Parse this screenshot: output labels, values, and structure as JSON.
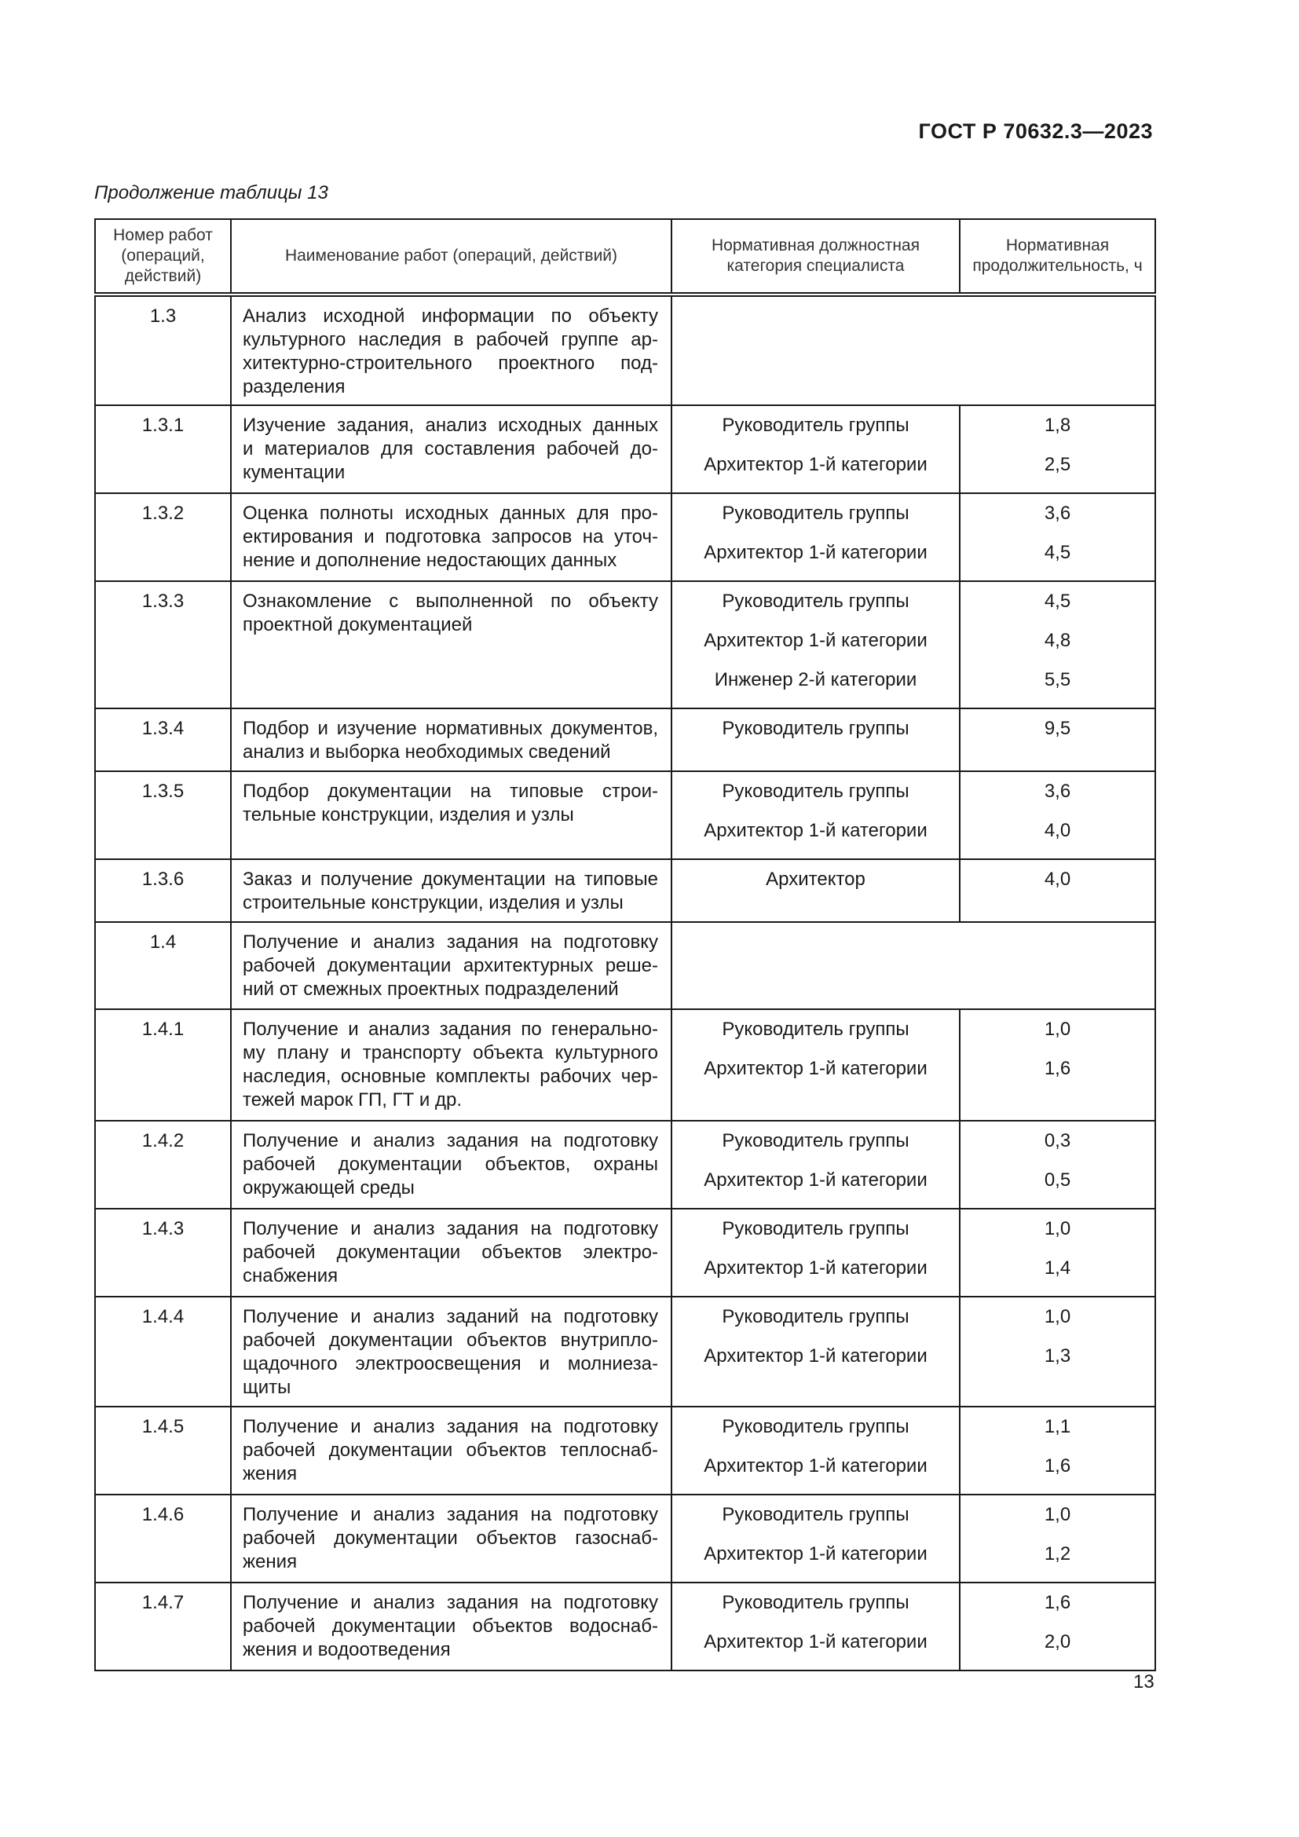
{
  "header": {
    "standard": "ГОСТ Р 70632.3—2023",
    "continuation": "Продолжение таблицы 13"
  },
  "table": {
    "columns": [
      "Номер работ (операций, действий)",
      "Наименование работ (операций, действий)",
      "Нормативная должностная категория специалиста",
      "Нормативная продолжительность, ч"
    ],
    "rows": [
      {
        "num": "1.3",
        "desc": [
          "Анализ исходной информации по объекту",
          "культурного наследия в рабочей группе ар-",
          "хитектурно-строительного проектного под-",
          "разделения"
        ],
        "staff": [],
        "hours": [],
        "merged": true
      },
      {
        "num": "1.3.1",
        "desc": [
          "Изучение задания, анализ исходных данных",
          "и материалов для составления рабочей до-",
          "кументации"
        ],
        "staff": [
          "Руководитель группы",
          "Архитектор 1-й категории"
        ],
        "hours": [
          "1,8",
          "2,5"
        ]
      },
      {
        "num": "1.3.2",
        "desc": [
          "Оценка полноты исходных данных для про-",
          "ектирования и подготовка запросов на уточ-",
          "нение и дополнение недостающих данных"
        ],
        "staff": [
          "Руководитель группы",
          "Архитектор 1-й категории"
        ],
        "hours": [
          "3,6",
          "4,5"
        ]
      },
      {
        "num": "1.3.3",
        "desc": [
          "Ознакомление с выполненной по объекту",
          "проектной документацией"
        ],
        "staff": [
          "Руководитель группы",
          "Архитектор 1-й категории",
          "Инженер 2-й категории"
        ],
        "hours": [
          "4,5",
          "4,8",
          "5,5"
        ]
      },
      {
        "num": "1.3.4",
        "desc": [
          "Подбор и изучение нормативных документов,",
          "анализ и выборка необходимых сведений"
        ],
        "staff": [
          "Руководитель группы"
        ],
        "hours": [
          "9,5"
        ]
      },
      {
        "num": "1.3.5",
        "desc": [
          "Подбор документации на типовые строи-",
          "тельные конструкции, изделия и узлы"
        ],
        "staff": [
          "Руководитель группы",
          "Архитектор 1-й категории"
        ],
        "hours": [
          "3,6",
          "4,0"
        ]
      },
      {
        "num": "1.3.6",
        "desc": [
          "Заказ и получение документации на типовые",
          "строительные конструкции, изделия и узлы"
        ],
        "staff": [
          "Архитектор"
        ],
        "hours": [
          "4,0"
        ]
      },
      {
        "num": "1.4",
        "desc": [
          "Получение и анализ задания на подготовку",
          "рабочей документации архитектурных реше-",
          "ний от смежных проектных подразделений"
        ],
        "staff": [],
        "hours": [],
        "merged": true
      },
      {
        "num": "1.4.1",
        "desc": [
          "Получение и анализ задания по генерально-",
          "му плану и транспорту объекта культурного",
          "наследия, основные комплекты рабочих чер-",
          "тежей марок ГП, ГТ и др."
        ],
        "staff": [
          "Руководитель группы",
          "Архитектор 1-й категории"
        ],
        "hours": [
          "1,0",
          "1,6"
        ]
      },
      {
        "num": "1.4.2",
        "desc": [
          "Получение и анализ задания на подготовку",
          "рабочей документации объектов, охраны",
          "окружающей среды"
        ],
        "staff": [
          "Руководитель группы",
          "Архитектор 1-й категории"
        ],
        "hours": [
          "0,3",
          "0,5"
        ]
      },
      {
        "num": "1.4.3",
        "desc": [
          "Получение и анализ задания на подготовку",
          "рабочей документации объектов электро-",
          "снабжения"
        ],
        "staff": [
          "Руководитель группы",
          "Архитектор 1-й категории"
        ],
        "hours": [
          "1,0",
          "1,4"
        ]
      },
      {
        "num": "1.4.4",
        "desc": [
          "Получение и анализ заданий на подготовку",
          "рабочей документации объектов внутрипло-",
          "щадочного электроосвещения и молниеза-",
          "щиты"
        ],
        "staff": [
          "Руководитель группы",
          "Архитектор 1-й категории"
        ],
        "hours": [
          "1,0",
          "1,3"
        ]
      },
      {
        "num": "1.4.5",
        "desc": [
          "Получение и анализ задания на подготовку",
          "рабочей документации объектов теплоснаб-",
          "жения"
        ],
        "staff": [
          "Руководитель группы",
          "Архитектор 1-й категории"
        ],
        "hours": [
          "1,1",
          "1,6"
        ]
      },
      {
        "num": "1.4.6",
        "desc": [
          "Получение и анализ задания на подготовку",
          "рабочей документации объектов газоснаб-",
          "жения"
        ],
        "staff": [
          "Руководитель группы",
          "Архитектор 1-й категории"
        ],
        "hours": [
          "1,0",
          "1,2"
        ]
      },
      {
        "num": "1.4.7",
        "desc": [
          "Получение и анализ задания на подготовку",
          "рабочей документации объектов водоснаб-",
          "жения и водоотведения"
        ],
        "staff": [
          "Руководитель группы",
          "Архитектор 1-й категории"
        ],
        "hours": [
          "1,6",
          "2,0"
        ]
      }
    ]
  },
  "footer": {
    "page_number": "13"
  }
}
